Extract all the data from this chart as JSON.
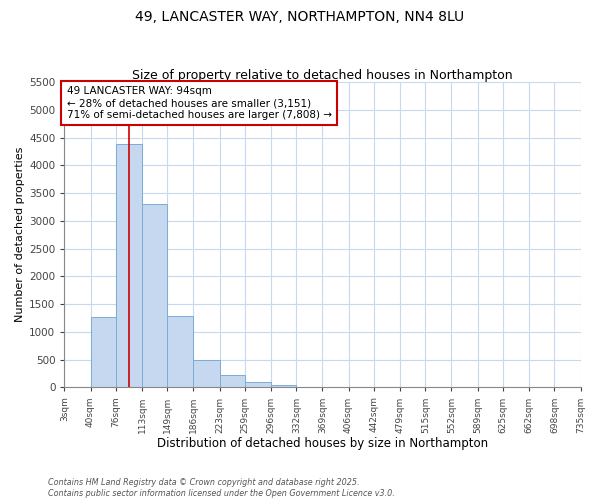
{
  "title": "49, LANCASTER WAY, NORTHAMPTON, NN4 8LU",
  "subtitle": "Size of property relative to detached houses in Northampton",
  "xlabel": "Distribution of detached houses by size in Northampton",
  "ylabel": "Number of detached properties",
  "bins": [
    "3sqm",
    "40sqm",
    "76sqm",
    "113sqm",
    "149sqm",
    "186sqm",
    "223sqm",
    "259sqm",
    "296sqm",
    "332sqm",
    "369sqm",
    "406sqm",
    "442sqm",
    "479sqm",
    "515sqm",
    "552sqm",
    "589sqm",
    "625sqm",
    "662sqm",
    "698sqm",
    "735sqm"
  ],
  "bin_edges": [
    3,
    40,
    76,
    113,
    149,
    186,
    223,
    259,
    296,
    332,
    369,
    406,
    442,
    479,
    515,
    552,
    589,
    625,
    662,
    698,
    735
  ],
  "values": [
    0,
    1270,
    4380,
    3300,
    1280,
    500,
    230,
    100,
    50,
    0,
    0,
    0,
    0,
    0,
    0,
    0,
    0,
    0,
    0,
    0
  ],
  "bar_color": "#c5d8f0",
  "bar_edge_color": "#7aadd4",
  "bg_color": "#ffffff",
  "plot_bg_color": "#ffffff",
  "grid_color": "#c8d8f0",
  "vline_x": 94,
  "vline_color": "#cc0000",
  "annotation_text": "49 LANCASTER WAY: 94sqm\n← 28% of detached houses are smaller (3,151)\n71% of semi-detached houses are larger (7,808) →",
  "annotation_box_color": "#cc0000",
  "ylim": [
    0,
    5500
  ],
  "yticks": [
    0,
    500,
    1000,
    1500,
    2000,
    2500,
    3000,
    3500,
    4000,
    4500,
    5000,
    5500
  ],
  "footer_line1": "Contains HM Land Registry data © Crown copyright and database right 2025.",
  "footer_line2": "Contains public sector information licensed under the Open Government Licence v3.0."
}
